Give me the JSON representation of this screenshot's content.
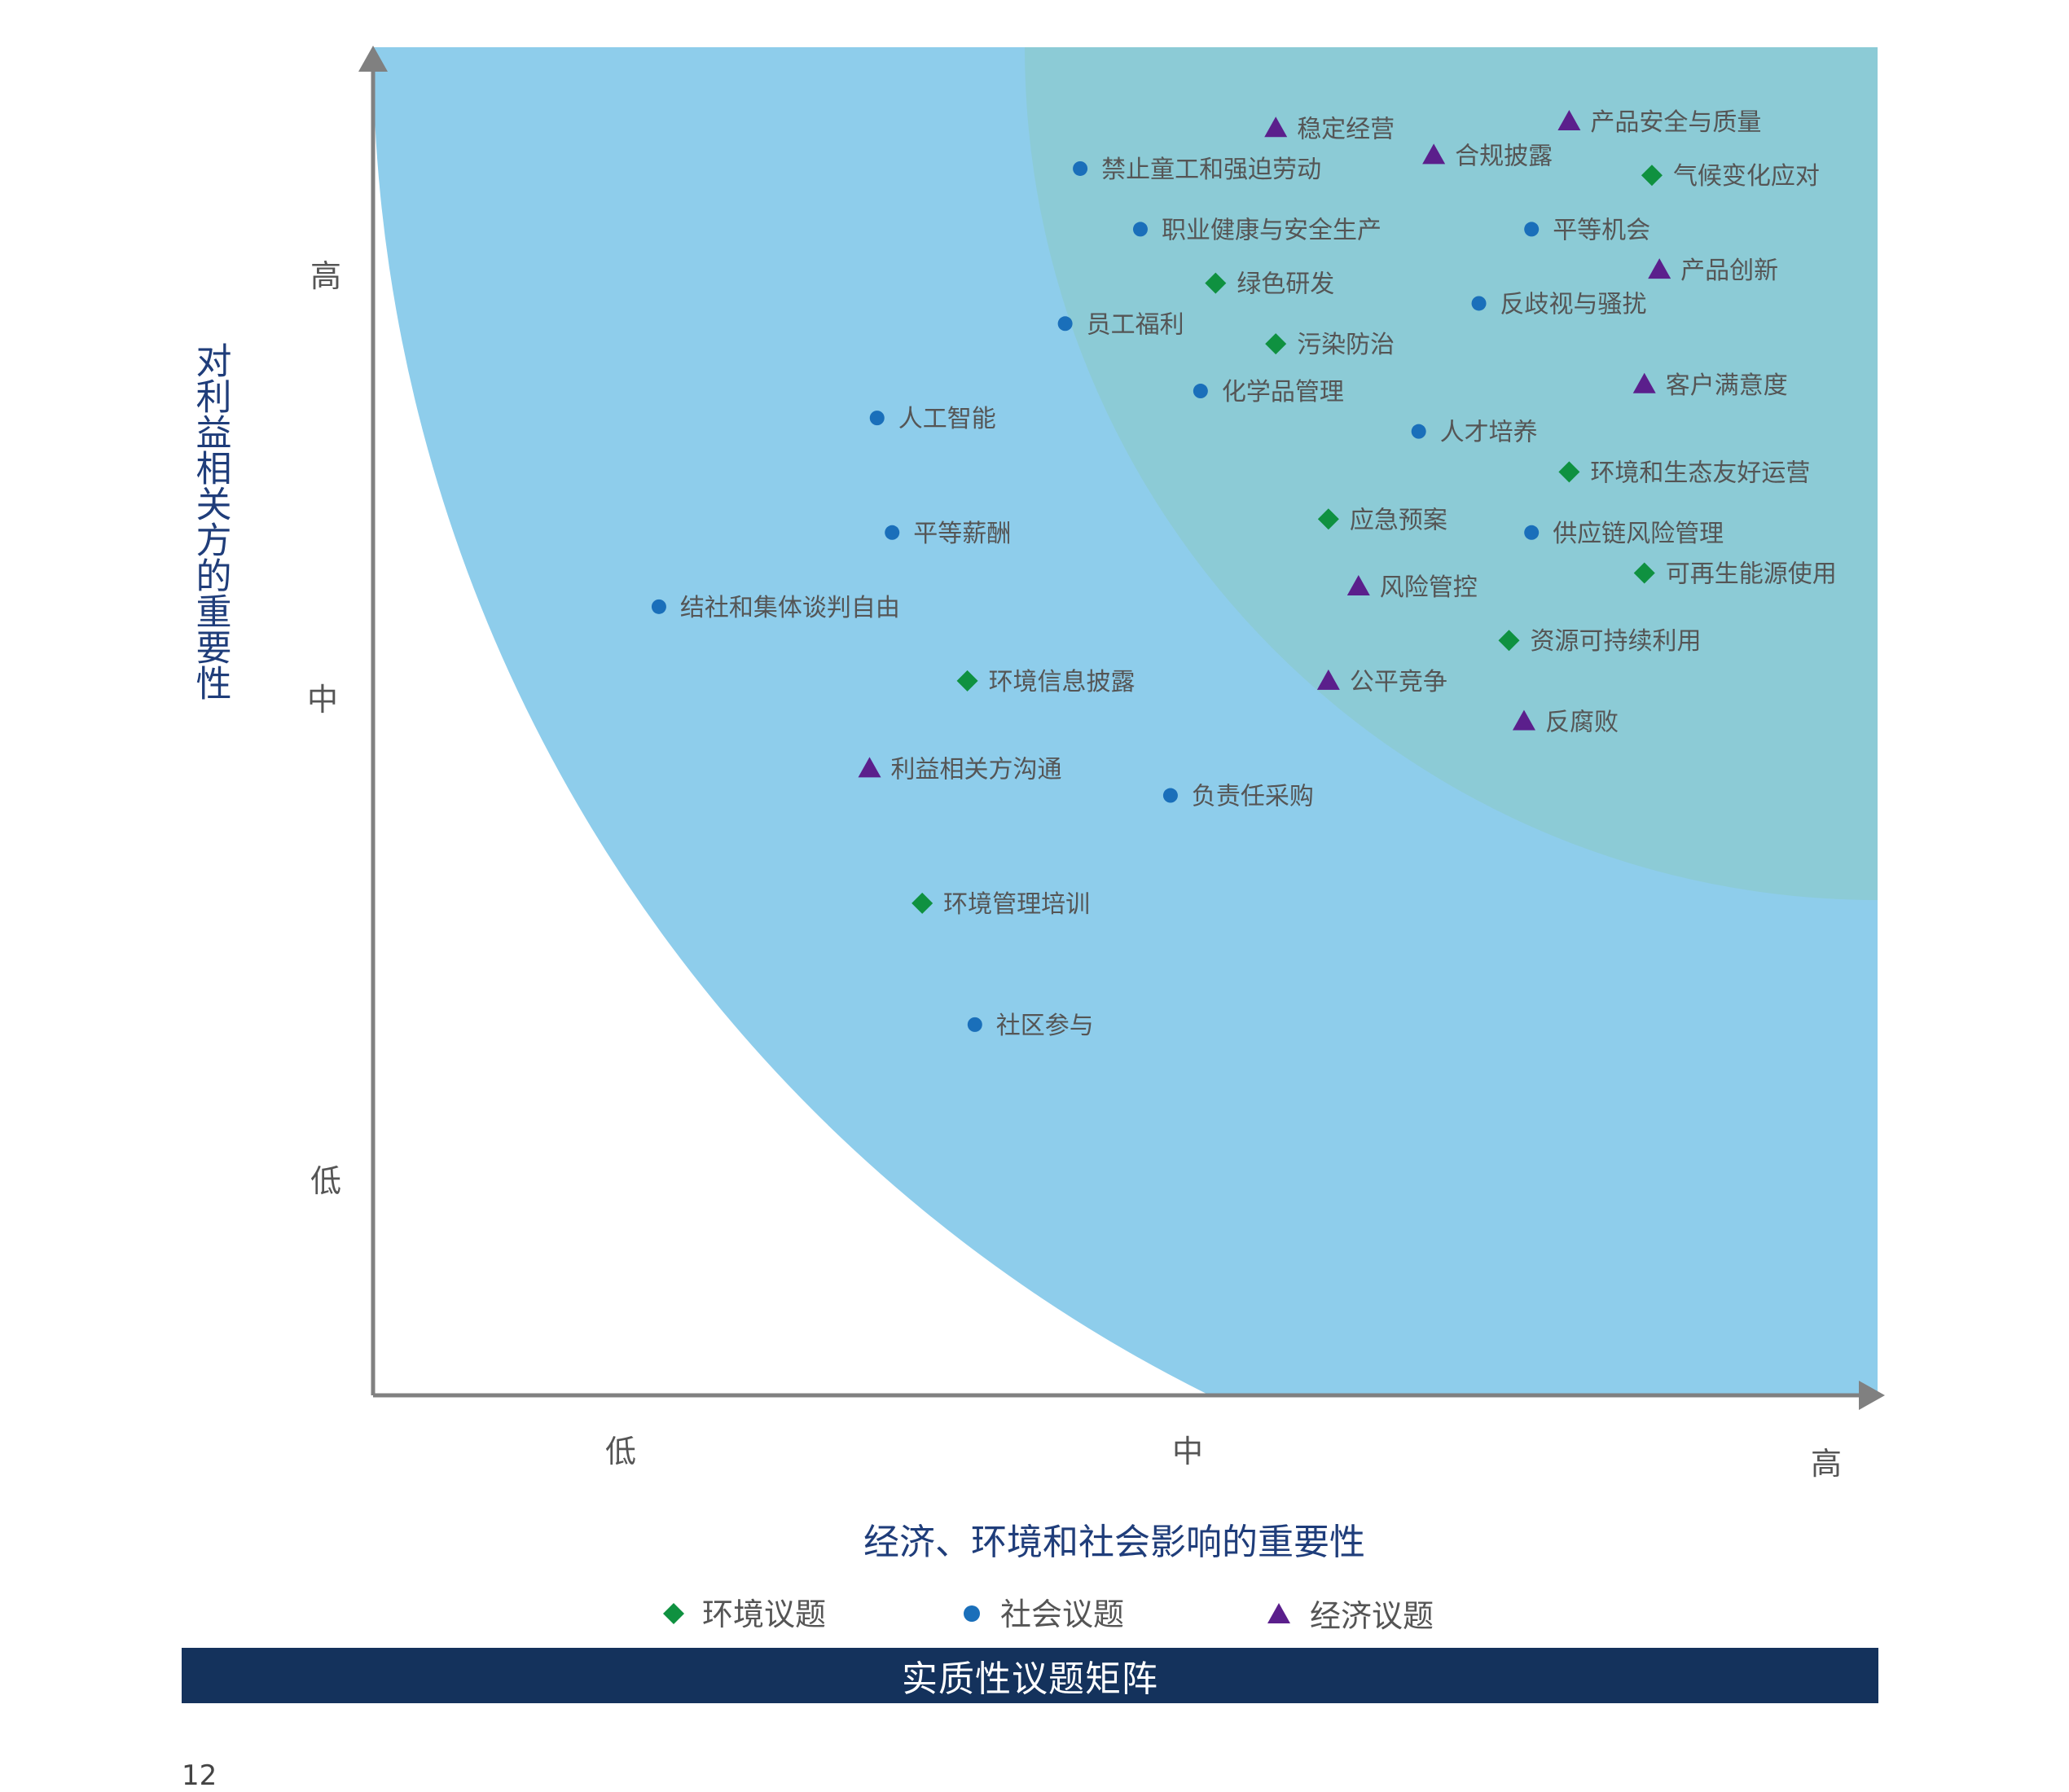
{
  "chart_data": {
    "type": "scatter",
    "title": "实质性议题矩阵",
    "xlabel": "经济、环境和社会影响的重要性",
    "ylabel": "对利益相关方的重要性",
    "x_ticks": [
      "低",
      "中",
      "高"
    ],
    "y_ticks": [
      "高",
      "中",
      "低"
    ],
    "xlim": [
      0,
      10
    ],
    "ylim": [
      0,
      10
    ],
    "legend": {
      "placement": "bottom",
      "entries": [
        {
          "category": "env",
          "label": "环境议题",
          "marker": "diamond",
          "color": "#0f9140"
        },
        {
          "category": "soc",
          "label": "社会议题",
          "marker": "circle",
          "color": "#1a6fba"
        },
        {
          "category": "eco",
          "label": "经济议题",
          "marker": "triangle",
          "color": "#5b1f8c"
        }
      ]
    },
    "points": [
      {
        "label": "稳定经营",
        "category": "eco",
        "x": 6.0,
        "y": 9.4
      },
      {
        "label": "产品安全与质量",
        "category": "eco",
        "x": 7.95,
        "y": 9.45
      },
      {
        "label": "合规披露",
        "category": "eco",
        "x": 7.05,
        "y": 9.2
      },
      {
        "label": "禁止童工和强迫劳动",
        "category": "soc",
        "x": 4.7,
        "y": 9.1
      },
      {
        "label": "气候变化应对",
        "category": "env",
        "x": 8.5,
        "y": 9.05
      },
      {
        "label": "职业健康与安全生产",
        "category": "soc",
        "x": 5.1,
        "y": 8.65
      },
      {
        "label": "平等机会",
        "category": "soc",
        "x": 7.7,
        "y": 8.65
      },
      {
        "label": "绿色研发",
        "category": "env",
        "x": 5.6,
        "y": 8.25
      },
      {
        "label": "产品创新",
        "category": "eco",
        "x": 8.55,
        "y": 8.35
      },
      {
        "label": "员工福利",
        "category": "soc",
        "x": 4.6,
        "y": 7.95
      },
      {
        "label": "反歧视与骚扰",
        "category": "soc",
        "x": 7.35,
        "y": 8.1
      },
      {
        "label": "污染防治",
        "category": "env",
        "x": 6.0,
        "y": 7.8
      },
      {
        "label": "化学品管理",
        "category": "soc",
        "x": 5.5,
        "y": 7.45
      },
      {
        "label": "客户满意度",
        "category": "eco",
        "x": 8.45,
        "y": 7.5
      },
      {
        "label": "人工智能",
        "category": "soc",
        "x": 3.35,
        "y": 7.25
      },
      {
        "label": "人才培养",
        "category": "soc",
        "x": 6.95,
        "y": 7.15
      },
      {
        "label": "环境和生态友好运营",
        "category": "env",
        "x": 7.95,
        "y": 6.85
      },
      {
        "label": "应急预案",
        "category": "env",
        "x": 6.35,
        "y": 6.5
      },
      {
        "label": "平等薪酬",
        "category": "soc",
        "x": 3.45,
        "y": 6.4
      },
      {
        "label": "供应链风险管理",
        "category": "soc",
        "x": 7.7,
        "y": 6.4
      },
      {
        "label": "可再生能源使用",
        "category": "env",
        "x": 8.45,
        "y": 6.1
      },
      {
        "label": "风险管控",
        "category": "eco",
        "x": 6.55,
        "y": 6.0
      },
      {
        "label": "结社和集体谈判自由",
        "category": "soc",
        "x": 1.9,
        "y": 5.85
      },
      {
        "label": "资源可持续利用",
        "category": "env",
        "x": 7.55,
        "y": 5.6
      },
      {
        "label": "环境信息披露",
        "category": "env",
        "x": 3.95,
        "y": 5.3
      },
      {
        "label": "公平竞争",
        "category": "eco",
        "x": 6.35,
        "y": 5.3
      },
      {
        "label": "反腐败",
        "category": "eco",
        "x": 7.65,
        "y": 5.0
      },
      {
        "label": "利益相关方沟通",
        "category": "eco",
        "x": 3.3,
        "y": 4.65
      },
      {
        "label": "负责任采购",
        "category": "soc",
        "x": 5.3,
        "y": 4.45
      },
      {
        "label": "环境管理培训",
        "category": "env",
        "x": 3.65,
        "y": 3.65
      },
      {
        "label": "社区参与",
        "category": "soc",
        "x": 4.0,
        "y": 2.75
      }
    ]
  },
  "page_number": "12"
}
